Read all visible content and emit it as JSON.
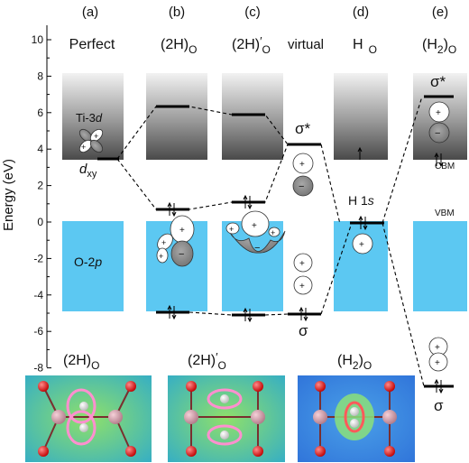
{
  "panel_labels": [
    "(a)",
    "(b)",
    "(c)",
    "(d)",
    "(e)"
  ],
  "column_titles": {
    "a": "Perfect",
    "b_main": "(2H)",
    "b_sub": "O",
    "c_main": "(2H)",
    "c_prime": "′",
    "c_sub": "O",
    "virtual": "virtual",
    "d_main": "H",
    "d_sub": "O",
    "e_main": "(H",
    "e_sub1": "2",
    "e_close": ")",
    "e_sub2": "O"
  },
  "axis": {
    "ylabel": "Energy (eV)",
    "ticks": [
      10,
      8,
      6,
      4,
      2,
      0,
      -2,
      -4,
      -6,
      -8
    ],
    "ylim": [
      -8.6,
      11
    ]
  },
  "band_labels": {
    "ti_main": "Ti-3",
    "ti_ital": "d",
    "o_main": "O-2",
    "o_ital": "p",
    "dxy_main": "d",
    "dxy_sub": "xy",
    "h1s_main": "H 1",
    "h1s_ital": "s",
    "cbm": "CBM",
    "vbm": "VBM",
    "sigma_star_virtual": "σ*",
    "sigma_virtual": "σ",
    "sigma_star_e": "σ*",
    "sigma_e": "σ"
  },
  "levels_eV": {
    "perfect_dxy": 3.4,
    "b_upper": 6.4,
    "b_mid": 0.7,
    "b_low": -5.0,
    "c_upper": 5.9,
    "c_mid": 1.1,
    "c_low": -5.2,
    "virtual_sigma_star": 4.2,
    "virtual_sigma": -5.1,
    "d_h1s": -0.1,
    "e_sigma_star": 6.8,
    "e_sigma": -9.5
  },
  "orbital_signs": {
    "plus": "+",
    "minus": "−"
  },
  "density_titles": {
    "b_main": "(2H)",
    "b_sub": "O",
    "c_main": "(2H)",
    "c_prime": "′",
    "c_sub": "O",
    "e_main": "(H",
    "e_sub1": "2",
    "e_close": ")",
    "e_sub2": "O"
  },
  "colors": {
    "o2p_band": "#5cc8f2",
    "ti3d_top": "#f2f2f2",
    "ti3d_bottom": "#4a4a4a",
    "level": "#000000"
  }
}
